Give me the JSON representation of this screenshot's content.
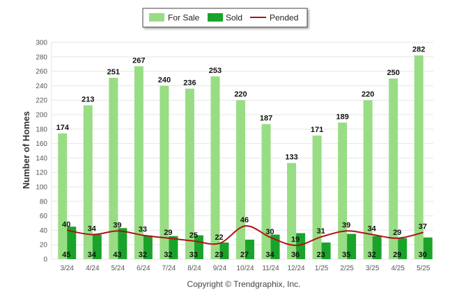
{
  "chart_data": {
    "type": "bar",
    "ylabel": "Number of Homes",
    "xlabel": "",
    "ylim": [
      0,
      300
    ],
    "yticks": [
      0,
      20,
      40,
      60,
      80,
      100,
      120,
      140,
      160,
      180,
      200,
      220,
      240,
      260,
      280,
      300
    ],
    "grid": true,
    "legend_position": "top-center",
    "categories": [
      "3/24",
      "4/24",
      "5/24",
      "6/24",
      "7/24",
      "8/24",
      "9/24",
      "10/24",
      "11/24",
      "12/24",
      "1/25",
      "2/25",
      "3/25",
      "4/25",
      "5/25"
    ],
    "series": [
      {
        "name": "For Sale",
        "type": "bar",
        "color": "#98dd84",
        "values": [
          174,
          213,
          251,
          267,
          240,
          236,
          253,
          220,
          187,
          133,
          171,
          189,
          220,
          250,
          282
        ]
      },
      {
        "name": "Sold",
        "type": "bar",
        "color": "#1aa32a",
        "values": [
          45,
          34,
          43,
          32,
          32,
          33,
          23,
          27,
          34,
          36,
          23,
          35,
          32,
          29,
          30
        ]
      },
      {
        "name": "Pended",
        "type": "line",
        "color": "#b01010",
        "values": [
          40,
          34,
          39,
          33,
          29,
          25,
          22,
          46,
          30,
          19,
          31,
          39,
          34,
          29,
          37
        ]
      }
    ]
  },
  "legend": {
    "for_sale": "For Sale",
    "sold": "Sold",
    "pended": "Pended"
  },
  "footer": {
    "copyright": "Copyright © Trendgraphix, Inc."
  }
}
